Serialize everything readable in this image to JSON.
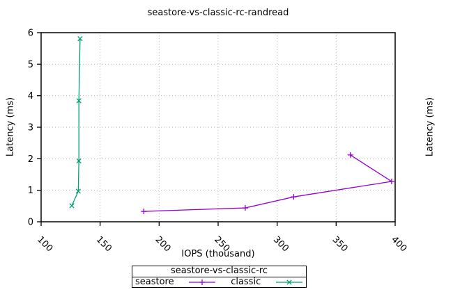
{
  "title": "seastore-vs-classic-rc-randread",
  "chart_data": {
    "type": "line",
    "title": "seastore-vs-classic-rc-randread",
    "xlabel": "IOPS (thousand)",
    "ylabel": "Latency (ms)",
    "y2label": "Latency (ms)",
    "xlim": [
      100,
      400
    ],
    "ylim": [
      0,
      6
    ],
    "xticks": [
      100,
      150,
      200,
      250,
      300,
      350,
      400
    ],
    "yticks": [
      0,
      1,
      2,
      3,
      4,
      5,
      6
    ],
    "grid": "dotted",
    "legend": {
      "title": "seastore-vs-classic-rc",
      "position": "bottom-outside-boxed"
    },
    "series": [
      {
        "name": "seastore",
        "color": "#9400d3",
        "marker": "plus",
        "points": [
          [
            187,
            0.33
          ],
          [
            273,
            0.44
          ],
          [
            314,
            0.79
          ],
          [
            397,
            1.28
          ],
          [
            362,
            2.12
          ]
        ]
      },
      {
        "name": "classic",
        "color": "#009e73",
        "marker": "cross",
        "points": [
          [
            126,
            0.51
          ],
          [
            131.5,
            0.97
          ],
          [
            132,
            1.93
          ],
          [
            132,
            3.84
          ],
          [
            133,
            5.81
          ]
        ]
      }
    ]
  }
}
